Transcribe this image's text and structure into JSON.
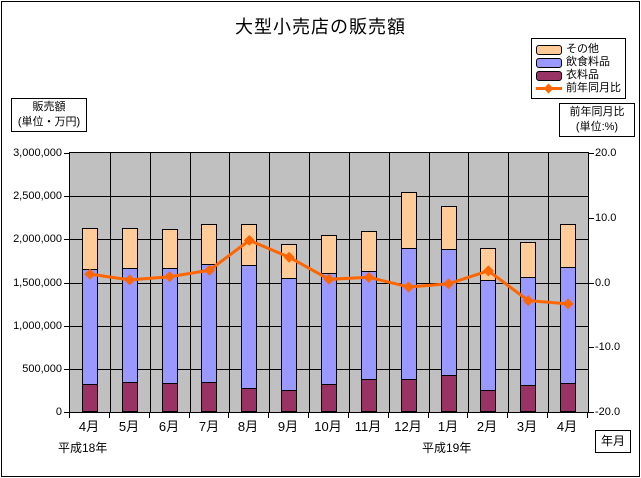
{
  "title": "大型小売店の販売額",
  "legend": {
    "items": [
      {
        "label": "その他",
        "type": "box",
        "color": "#FFCC99"
      },
      {
        "label": "飲食料品",
        "type": "box",
        "color": "#9999FF"
      },
      {
        "label": "衣料品",
        "type": "box",
        "color": "#993366"
      },
      {
        "label": "前年同月比",
        "type": "line",
        "color": "#FF6600"
      }
    ]
  },
  "left_unit_box": {
    "line1": "販売額",
    "line2": "(単位・万円)"
  },
  "right_unit_box": {
    "line1": "前年同月比",
    "line2": "(単位:%)"
  },
  "era_labels": [
    "平成18年",
    "平成19年"
  ],
  "x_axis_title": "年月",
  "chart_data": {
    "type": "combo",
    "bar_mode": "stacked",
    "title": "大型小売店の販売額",
    "plot_bg": "#C0C0C0",
    "grid": true,
    "legend_position": "top-right",
    "categories": [
      "4月",
      "5月",
      "6月",
      "7月",
      "8月",
      "9月",
      "10月",
      "11月",
      "12月",
      "1月",
      "2月",
      "3月",
      "4月"
    ],
    "era_notes": [
      {
        "label": "平成18年",
        "applies_from": "4月"
      },
      {
        "label": "平成19年",
        "applies_from": "1月"
      }
    ],
    "series": [
      {
        "name": "衣料品",
        "type": "bar",
        "color": "#993366",
        "axis": "left",
        "values": [
          330000,
          350000,
          340000,
          350000,
          280000,
          250000,
          330000,
          380000,
          380000,
          430000,
          260000,
          310000,
          340000
        ]
      },
      {
        "name": "飲食料品",
        "type": "bar",
        "color": "#9999FF",
        "axis": "left",
        "values": [
          1345000,
          1335000,
          1340000,
          1380000,
          1440000,
          1305000,
          1295000,
          1265000,
          1525000,
          1470000,
          1290000,
          1265000,
          1350000
        ]
      },
      {
        "name": "その他",
        "type": "bar",
        "color": "#FFCC99",
        "axis": "left",
        "values": [
          485000,
          475000,
          460000,
          480000,
          485000,
          405000,
          450000,
          475000,
          655000,
          505000,
          380000,
          415000,
          510000
        ]
      },
      {
        "name": "前年同月比",
        "type": "line",
        "color": "#FF6600",
        "axis": "right",
        "values": [
          1.3,
          0.4,
          0.9,
          1.9,
          6.5,
          3.9,
          0.5,
          0.8,
          -0.7,
          -0.2,
          1.8,
          -2.8,
          -3.3
        ]
      }
    ],
    "bar_totals": [
      2160000,
      2160000,
      2140000,
      2210000,
      2205000,
      1960000,
      2075000,
      2120000,
      2560000,
      2405000,
      1930000,
      1990000,
      2200000
    ],
    "left_axis": {
      "label": "販売額(単位・万円)",
      "min": 0,
      "max": 3000000,
      "tick_interval": 500000,
      "ticks": [
        "3,000,000",
        "2,500,000",
        "2,000,000",
        "1,500,000",
        "1,000,000",
        "500,000",
        "0"
      ]
    },
    "right_axis": {
      "label": "前年同月比(単位:%)",
      "min": -20,
      "max": 20,
      "tick_interval": 10,
      "ticks": [
        "20.0",
        "10.0",
        "0.0",
        "-10.0",
        "-20.0"
      ]
    }
  }
}
